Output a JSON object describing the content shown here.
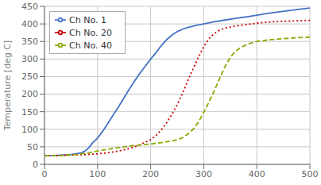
{
  "chart_data": {
    "type": "line",
    "ylabel": "Temperature [deg C]",
    "xlim": [
      0,
      500
    ],
    "ylim": [
      0,
      450
    ],
    "xticks": [
      0,
      100,
      200,
      300,
      400,
      500
    ],
    "yticks": [
      0,
      50,
      100,
      150,
      200,
      250,
      300,
      350,
      400,
      450
    ],
    "grid": true,
    "legend": "upper left",
    "series": [
      {
        "name": "Ch No. 1",
        "color": "#4472c4",
        "line_style": "solid",
        "x": [
          0,
          10,
          20,
          30,
          40,
          50,
          60,
          70,
          75,
          80,
          85,
          90,
          100,
          110,
          120,
          130,
          140,
          150,
          160,
          170,
          180,
          190,
          200,
          210,
          220,
          230,
          240,
          250,
          260,
          270,
          280,
          290,
          300,
          320,
          340,
          360,
          380,
          400,
          420,
          440,
          460,
          480,
          500
        ],
        "values": [
          25,
          25,
          25,
          26,
          27,
          28,
          30,
          33,
          37,
          42,
          50,
          60,
          75,
          95,
          118,
          142,
          165,
          190,
          215,
          238,
          260,
          280,
          300,
          318,
          338,
          355,
          368,
          378,
          385,
          390,
          394,
          397,
          400,
          406,
          411,
          416,
          420,
          425,
          430,
          434,
          438,
          442,
          445
        ]
      },
      {
        "name": "Ch No. 20",
        "color": "#cc0000",
        "line_style": "dotted",
        "x": [
          0,
          20,
          40,
          60,
          80,
          100,
          120,
          140,
          160,
          180,
          200,
          210,
          220,
          230,
          240,
          250,
          260,
          270,
          280,
          290,
          300,
          310,
          320,
          330,
          340,
          360,
          380,
          400,
          420,
          440,
          460,
          480,
          500
        ],
        "values": [
          25,
          25,
          26,
          27,
          28,
          30,
          33,
          38,
          45,
          56,
          70,
          82,
          98,
          118,
          142,
          170,
          202,
          238,
          272,
          305,
          335,
          358,
          373,
          382,
          388,
          394,
          398,
          402,
          405,
          407,
          408,
          409,
          410
        ]
      },
      {
        "name": "Ch No. 40",
        "color": "#8aaa00",
        "line_style": "dashed",
        "x": [
          0,
          20,
          40,
          60,
          80,
          100,
          120,
          140,
          160,
          180,
          200,
          220,
          240,
          250,
          260,
          270,
          280,
          290,
          300,
          310,
          320,
          330,
          340,
          350,
          360,
          370,
          380,
          390,
          400,
          420,
          440,
          460,
          480,
          500
        ],
        "values": [
          25,
          25,
          26,
          28,
          32,
          38,
          43,
          48,
          52,
          55,
          58,
          62,
          67,
          70,
          76,
          86,
          100,
          120,
          148,
          178,
          210,
          245,
          278,
          305,
          322,
          333,
          340,
          346,
          350,
          354,
          357,
          359,
          361,
          362
        ]
      }
    ]
  }
}
